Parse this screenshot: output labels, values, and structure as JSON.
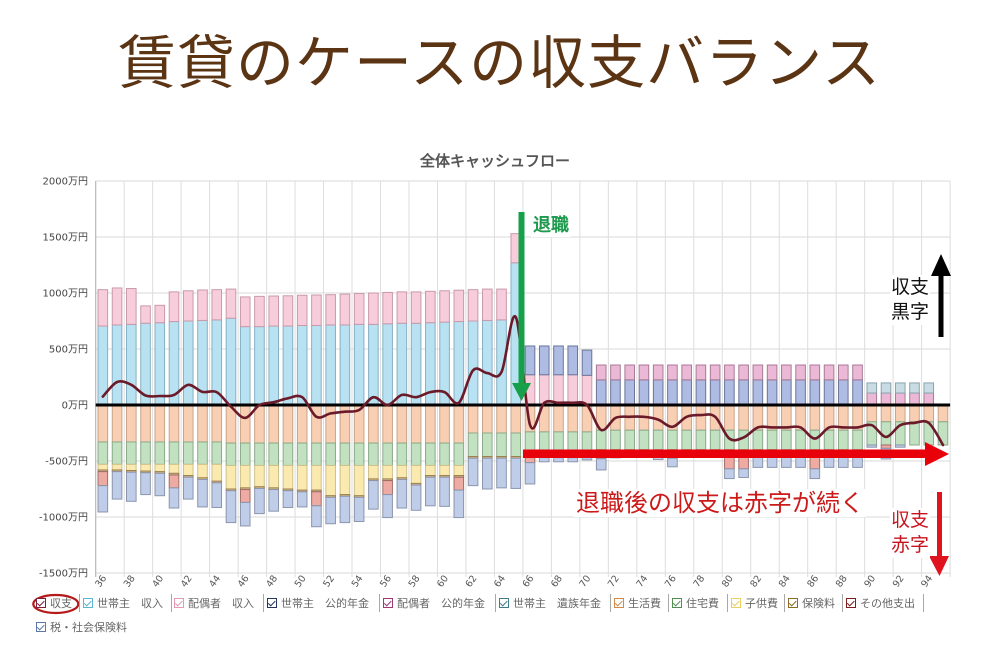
{
  "page": {
    "title": "賃貸のケースの収支バランス"
  },
  "annotations": {
    "retirement_label": "退職",
    "deficit_message": "退職後の収支は赤字が続く",
    "surplus_indicator": [
      "収支",
      "黒字"
    ],
    "deficit_indicator": [
      "収支",
      "赤字"
    ],
    "highlighted_legend_item": "収支",
    "retirement_color": "#17a04a",
    "deficit_color": "#e8000a"
  },
  "chart_data": {
    "type": "bar",
    "subtype": "stacked bar with balance line",
    "title": "全体キャッシュフロー",
    "xlabel": "",
    "ylabel": "",
    "unit": "万円",
    "ylim": [
      -1500,
      2000
    ],
    "yticks": [
      2000,
      1500,
      1000,
      500,
      0,
      -500,
      -1000,
      -1500
    ],
    "ytick_labels": [
      "2000万円",
      "1500万円",
      "1000万円",
      "500万円",
      "0万円",
      "-500万円",
      "-1000万円",
      "-1500万円"
    ],
    "grid": true,
    "legend_position": "bottom",
    "x": [
      36,
      37,
      38,
      39,
      40,
      41,
      42,
      43,
      44,
      45,
      46,
      47,
      48,
      49,
      50,
      51,
      52,
      53,
      54,
      55,
      56,
      57,
      58,
      59,
      60,
      61,
      62,
      63,
      64,
      65,
      66,
      67,
      68,
      69,
      70,
      71,
      72,
      73,
      74,
      75,
      76,
      77,
      78,
      79,
      80,
      81,
      82,
      83,
      84,
      85,
      86,
      87,
      88,
      89,
      90,
      91,
      92,
      93,
      94,
      95
    ],
    "xtick_labels": [
      "36",
      "38",
      "40",
      "42",
      "44",
      "46",
      "48",
      "50",
      "52",
      "54",
      "56",
      "58",
      "60",
      "62",
      "64",
      "66",
      "68",
      "70",
      "72",
      "74",
      "76",
      "78",
      "80",
      "82",
      "84",
      "86",
      "88",
      "90",
      "92",
      "94"
    ],
    "series": [
      {
        "key": "balance",
        "name": "収支",
        "kind": "line",
        "color": "#6b1a2a",
        "legend_color": "#7a1f3d",
        "checked": true,
        "values": [
          75,
          205,
          180,
          85,
          80,
          90,
          180,
          117,
          115,
          -15,
          -115,
          0,
          25,
          60,
          70,
          -105,
          -75,
          -60,
          -45,
          70,
          0,
          90,
          70,
          115,
          115,
          20,
          310,
          285,
          295,
          785,
          -178,
          20,
          20,
          20,
          0,
          -223,
          -115,
          -105,
          -105,
          -130,
          -195,
          -105,
          -90,
          -105,
          -300,
          -290,
          -200,
          -200,
          -200,
          -200,
          -300,
          -200,
          -200,
          -200,
          -180,
          -285,
          -180,
          -160,
          -160,
          -357
        ]
      },
      {
        "key": "head-income",
        "name": "世帯主　収入",
        "kind": "bar",
        "color": "#b8e2f2",
        "border": "#86b0c4",
        "legend_color": "#5fb3d3",
        "checked": true,
        "values": [
          705,
          715,
          720,
          730,
          735,
          745,
          750,
          755,
          760,
          775,
          700,
          700,
          705,
          705,
          710,
          710,
          715,
          715,
          720,
          720,
          725,
          730,
          730,
          735,
          740,
          745,
          750,
          755,
          760,
          1270,
          0,
          0,
          0,
          0,
          0,
          0,
          0,
          0,
          0,
          0,
          0,
          0,
          0,
          0,
          0,
          0,
          0,
          0,
          0,
          0,
          0,
          0,
          0,
          0,
          0,
          0,
          0,
          0,
          0,
          0
        ]
      },
      {
        "key": "spouse-income",
        "name": "配偶者　収入",
        "kind": "bar",
        "color": "#f7ccdb",
        "border": "#c99aaa",
        "legend_color": "#e39ab5",
        "checked": true,
        "values": [
          325,
          330,
          320,
          155,
          155,
          265,
          270,
          272,
          270,
          260,
          265,
          270,
          268,
          270,
          270,
          272,
          270,
          275,
          275,
          280,
          280,
          280,
          280,
          280,
          280,
          280,
          280,
          280,
          275,
          260,
          270,
          270,
          270,
          270,
          265,
          0,
          0,
          0,
          0,
          0,
          0,
          0,
          0,
          0,
          0,
          0,
          0,
          0,
          0,
          0,
          0,
          0,
          0,
          0,
          0,
          0,
          0,
          0,
          0,
          0
        ]
      },
      {
        "key": "head-pension",
        "name": "世帯主　公的年金",
        "kind": "bar",
        "color": "#aebbe3",
        "border": "#6a7598",
        "legend_color": "#24365e",
        "checked": true,
        "values": [
          0,
          0,
          0,
          0,
          0,
          0,
          0,
          0,
          0,
          0,
          0,
          0,
          0,
          0,
          0,
          0,
          0,
          0,
          0,
          0,
          0,
          0,
          0,
          0,
          0,
          0,
          0,
          0,
          0,
          0,
          257,
          257,
          257,
          257,
          225,
          225,
          225,
          225,
          225,
          225,
          225,
          225,
          225,
          225,
          225,
          225,
          225,
          225,
          225,
          225,
          225,
          225,
          225,
          225,
          0,
          0,
          0,
          0,
          0,
          0
        ]
      },
      {
        "key": "spouse-pension",
        "name": "配偶者　公的年金",
        "kind": "bar",
        "color": "#ebb9d6",
        "border": "#a87a95",
        "legend_color": "#9c3a78",
        "checked": true,
        "values": [
          0,
          0,
          0,
          0,
          0,
          0,
          0,
          0,
          0,
          0,
          0,
          0,
          0,
          0,
          0,
          0,
          0,
          0,
          0,
          0,
          0,
          0,
          0,
          0,
          0,
          0,
          0,
          0,
          0,
          0,
          0,
          0,
          0,
          0,
          0,
          132,
          132,
          132,
          132,
          132,
          132,
          132,
          132,
          132,
          132,
          132,
          132,
          132,
          132,
          132,
          132,
          132,
          132,
          132,
          107,
          107,
          107,
          107,
          107,
          0
        ]
      },
      {
        "key": "head-survivor-pension",
        "name": "世帯主　遺族年金",
        "kind": "bar",
        "color": "#c9dbe3",
        "border": "#88a4ae",
        "legend_color": "#3f7d8c",
        "checked": true,
        "values": [
          0,
          0,
          0,
          0,
          0,
          0,
          0,
          0,
          0,
          0,
          0,
          0,
          0,
          0,
          0,
          0,
          0,
          0,
          0,
          0,
          0,
          0,
          0,
          0,
          0,
          0,
          0,
          0,
          0,
          0,
          0,
          0,
          0,
          0,
          0,
          0,
          0,
          0,
          0,
          0,
          0,
          0,
          0,
          0,
          0,
          0,
          0,
          0,
          0,
          0,
          0,
          0,
          0,
          0,
          90,
          90,
          90,
          90,
          90,
          0
        ]
      },
      {
        "key": "living",
        "name": "生活費",
        "kind": "bar",
        "color": "#f9cfb3",
        "border": "#c9a48a",
        "legend_color": "#d18a4a",
        "checked": true,
        "values": [
          -330,
          -330,
          -330,
          -330,
          -330,
          -330,
          -330,
          -330,
          -330,
          -340,
          -340,
          -340,
          -340,
          -340,
          -340,
          -340,
          -340,
          -340,
          -340,
          -340,
          -340,
          -340,
          -340,
          -340,
          -340,
          -340,
          -250,
          -250,
          -250,
          -250,
          -240,
          -240,
          -240,
          -240,
          -240,
          -225,
          -225,
          -225,
          -225,
          -225,
          -225,
          -225,
          -225,
          -225,
          -225,
          -225,
          -225,
          -225,
          -225,
          -225,
          -225,
          -225,
          -225,
          -225,
          -150,
          -150,
          -150,
          -150,
          -150,
          -150
        ]
      },
      {
        "key": "housing",
        "name": "住宅費",
        "kind": "bar",
        "color": "#c1e1c1",
        "border": "#8aaa8a",
        "legend_color": "#4f8f4f",
        "checked": true,
        "values": [
          -200,
          -200,
          -200,
          -200,
          -200,
          -200,
          -200,
          -200,
          -200,
          -200,
          -200,
          -200,
          -200,
          -200,
          -200,
          -200,
          -200,
          -200,
          -200,
          -200,
          -200,
          -200,
          -200,
          -200,
          -200,
          -200,
          -210,
          -210,
          -210,
          -210,
          -220,
          -220,
          -220,
          -220,
          -220,
          -175,
          -175,
          -175,
          -175,
          -175,
          -175,
          -175,
          -175,
          -175,
          -175,
          -175,
          -175,
          -175,
          -175,
          -175,
          -175,
          -175,
          -175,
          -175,
          -207,
          -207,
          -207,
          -207,
          -207,
          -207
        ]
      },
      {
        "key": "children",
        "name": "子供費",
        "kind": "bar",
        "color": "#fbeab0",
        "border": "#cfc08a",
        "legend_color": "#e7cf62",
        "checked": true,
        "values": [
          -50,
          -50,
          -55,
          -60,
          -65,
          -80,
          -100,
          -120,
          -150,
          -210,
          -200,
          -190,
          -200,
          -210,
          -220,
          -220,
          -270,
          -260,
          -270,
          -120,
          -120,
          -110,
          -160,
          -90,
          -90,
          -90,
          0,
          0,
          0,
          0,
          0,
          0,
          0,
          0,
          0,
          0,
          0,
          0,
          0,
          0,
          0,
          0,
          0,
          0,
          0,
          0,
          0,
          0,
          0,
          0,
          0,
          0,
          0,
          0,
          0,
          0,
          0,
          0,
          0,
          0
        ]
      },
      {
        "key": "insurance",
        "name": "保険料",
        "kind": "bar",
        "color": "#d9bd8e",
        "border": "#9a7f50",
        "legend_color": "#8c6d25",
        "checked": true,
        "values": [
          -15,
          -15,
          -15,
          -15,
          -15,
          -15,
          -15,
          -15,
          -15,
          -15,
          -15,
          -15,
          -15,
          -15,
          -15,
          -15,
          -15,
          -15,
          -15,
          -15,
          -15,
          -15,
          -15,
          -15,
          -15,
          -15,
          -15,
          -15,
          -15,
          -15,
          -10,
          -10,
          -10,
          -10,
          -10,
          -10,
          -10,
          -10,
          -10,
          -10,
          -10,
          -10,
          -10,
          -10,
          -10,
          -10,
          -10,
          -10,
          -10,
          -10,
          -10,
          -10,
          -10,
          -10,
          0,
          0,
          0,
          0,
          0,
          0
        ]
      },
      {
        "key": "other",
        "name": "その他支出",
        "kind": "bar",
        "color": "#eeaba3",
        "border": "#a06c68",
        "legend_color": "#7a1d1d",
        "checked": true,
        "values": [
          -125,
          0,
          0,
          0,
          0,
          -115,
          0,
          0,
          0,
          0,
          -115,
          0,
          0,
          0,
          0,
          -125,
          0,
          0,
          0,
          0,
          -125,
          0,
          0,
          0,
          0,
          -115,
          0,
          0,
          0,
          0,
          -45,
          0,
          0,
          0,
          0,
          -70,
          0,
          0,
          0,
          0,
          -65,
          0,
          0,
          0,
          -160,
          -160,
          0,
          0,
          0,
          0,
          -160,
          0,
          0,
          0,
          0,
          -30,
          0,
          0,
          0,
          0
        ]
      },
      {
        "key": "tax",
        "name": "税・社会保険料",
        "kind": "bar",
        "color": "#bfcde9",
        "border": "#8b96ad",
        "legend_color": "#5b78a8",
        "checked": true,
        "values": [
          -235,
          -245,
          -260,
          -195,
          -200,
          -180,
          -195,
          -245,
          -220,
          -285,
          -210,
          -225,
          -193,
          -150,
          -135,
          -187,
          -235,
          -235,
          -215,
          -255,
          -205,
          -255,
          -225,
          -255,
          -260,
          -245,
          -245,
          -275,
          -265,
          -270,
          -190,
          -37,
          -37,
          -37,
          -20,
          -100,
          -62,
          -52,
          -52,
          -77,
          -77,
          -52,
          -37,
          -52,
          -87,
          -77,
          -147,
          -147,
          -147,
          -147,
          -87,
          -147,
          -147,
          -147,
          -20,
          -95,
          -20,
          0,
          0,
          0
        ]
      }
    ]
  }
}
